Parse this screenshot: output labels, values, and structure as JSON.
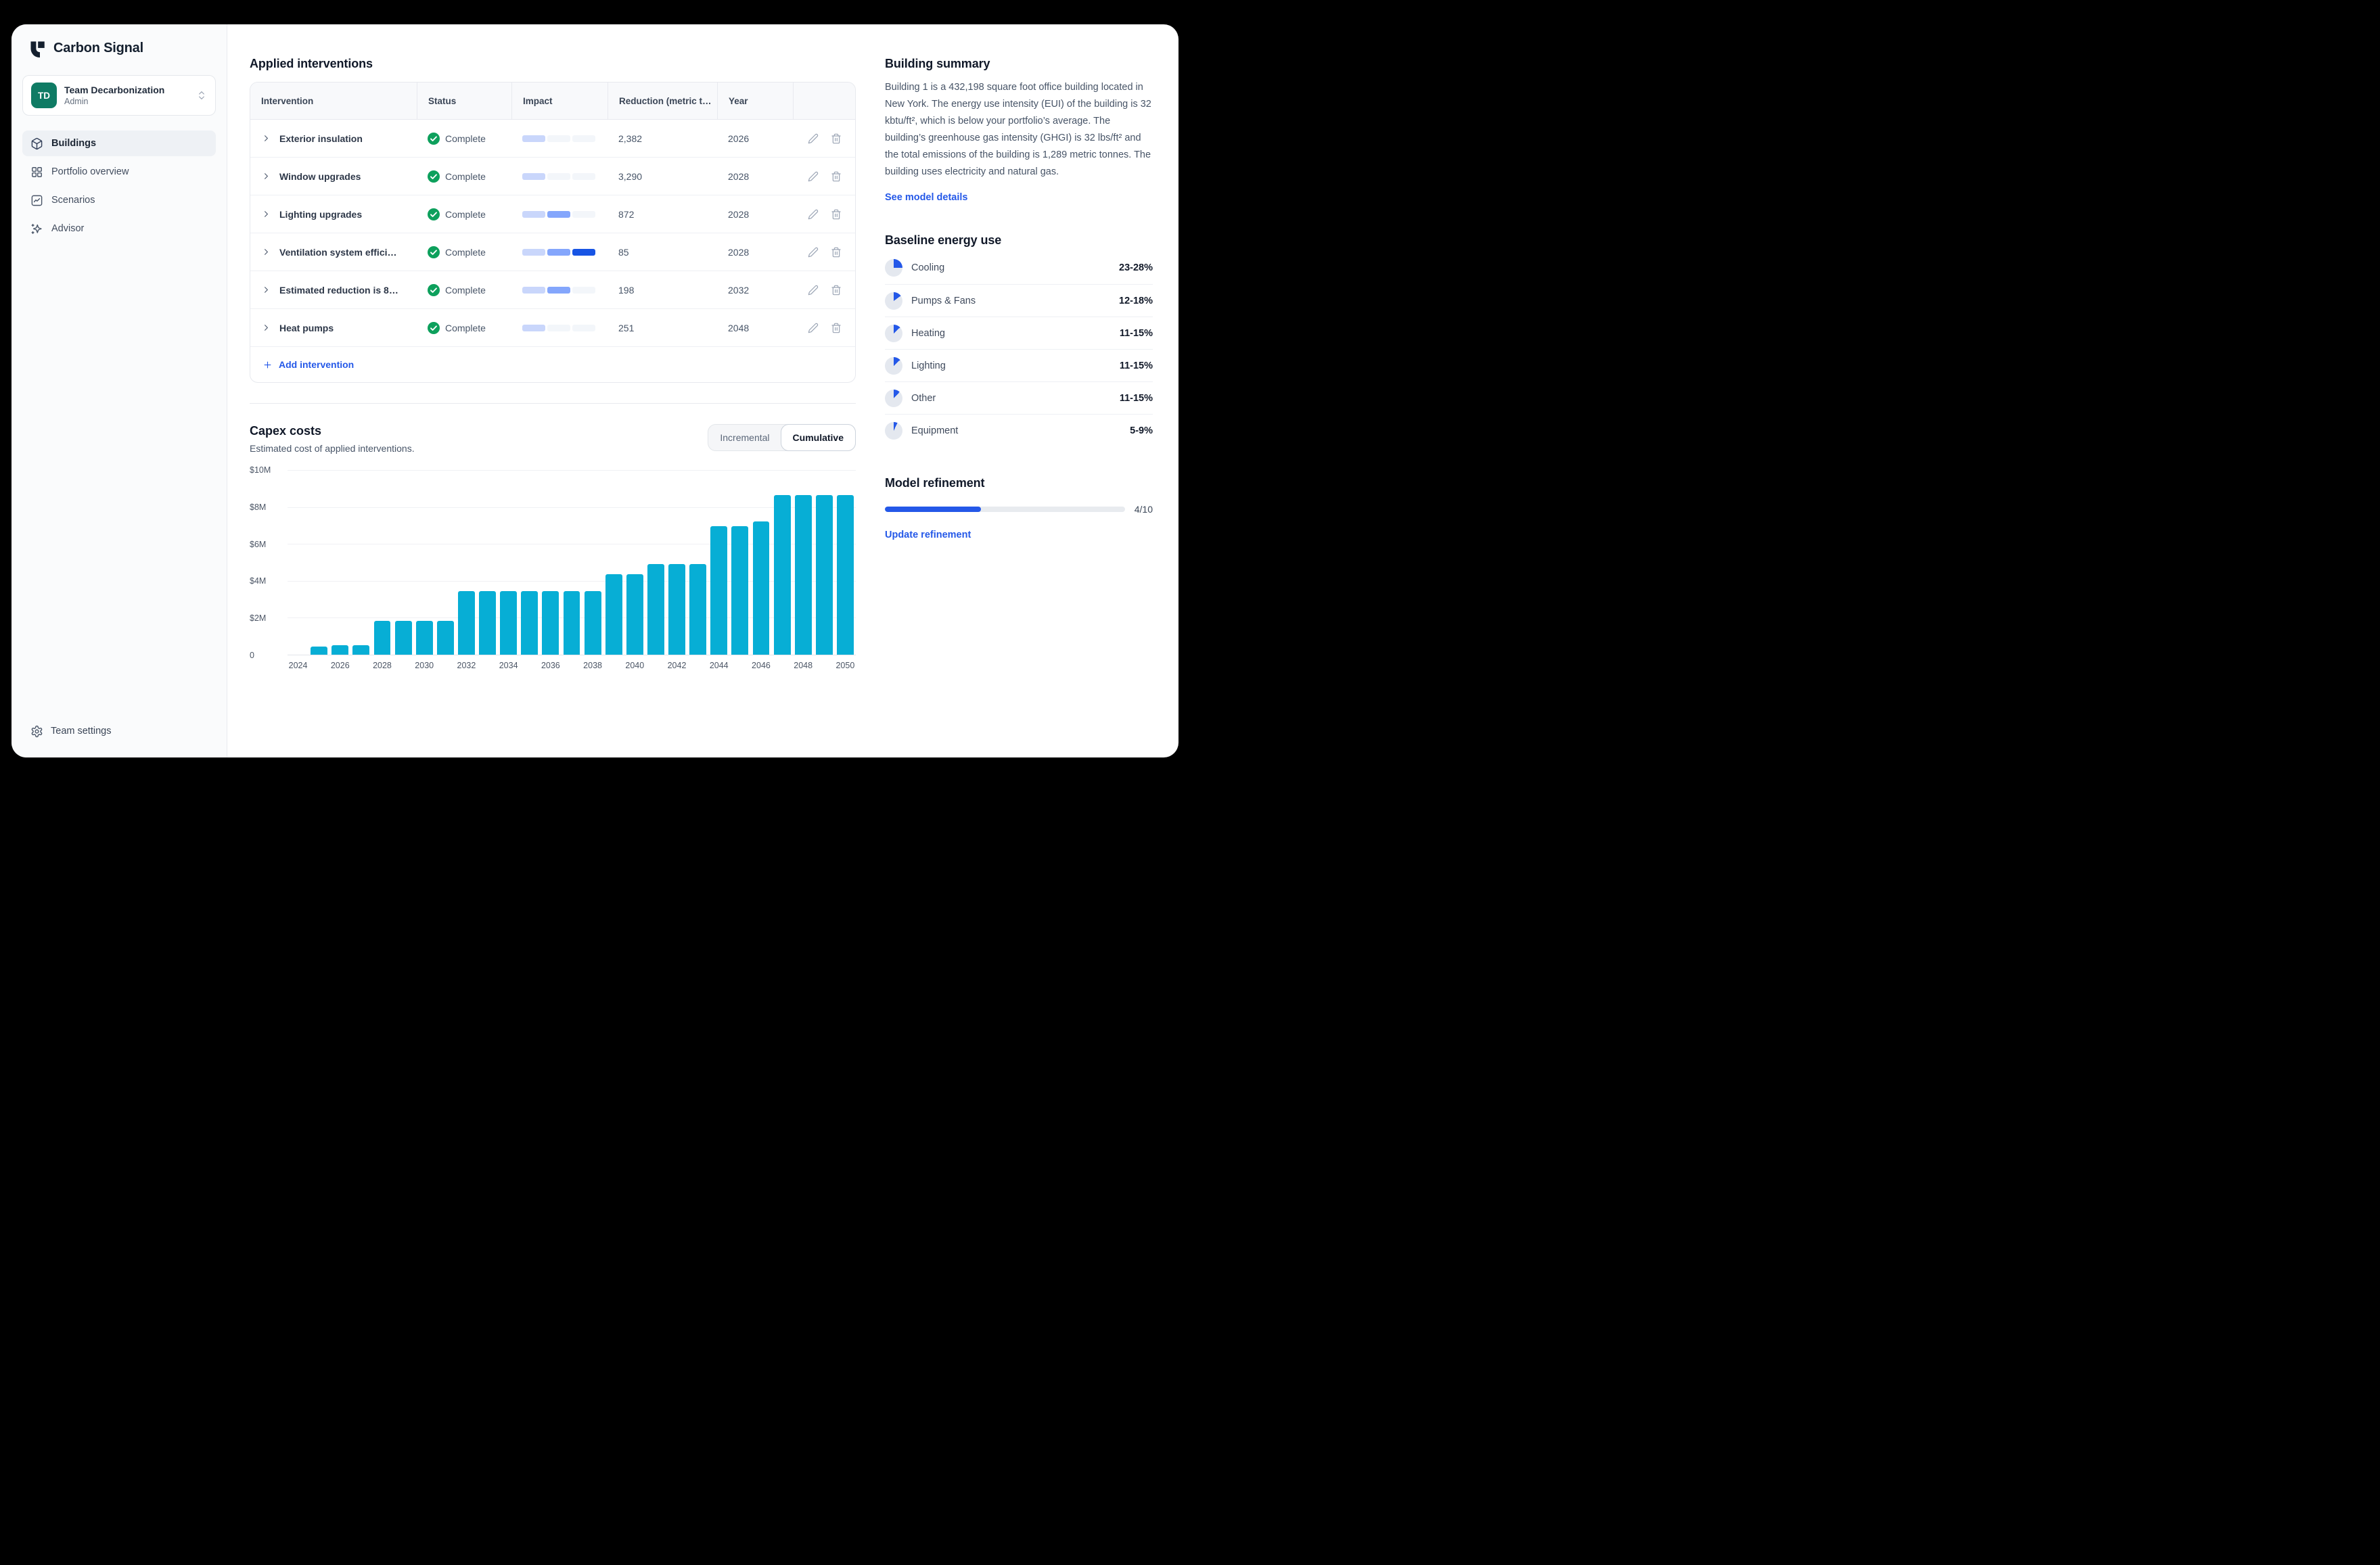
{
  "colors": {
    "accent": "#2458e8",
    "bar": "#07aed5",
    "green": "#0da05c",
    "impact_light": "#c9d6fb",
    "impact_medium": "#84a6fc",
    "impact_dark": "#1754e4",
    "pie_track": "#e4e8ef"
  },
  "app": {
    "name": "Carbon Signal"
  },
  "sidebar": {
    "team": {
      "initials": "TD",
      "name": "Team Decarbonization",
      "role": "Admin"
    },
    "nav": [
      {
        "label": "Buildings",
        "active": true
      },
      {
        "label": "Portfolio overview",
        "active": false
      },
      {
        "label": "Scenarios",
        "active": false
      },
      {
        "label": "Advisor",
        "active": false
      }
    ],
    "footer_label": "Team settings"
  },
  "interventions": {
    "title": "Applied interventions",
    "columns": [
      "Intervention",
      "Status",
      "Impact",
      "Reduction (metric t…",
      "Year"
    ],
    "rows": [
      {
        "name": "Exterior insulation",
        "status": "Complete",
        "impact": 1,
        "reduction": "2,382",
        "year": "2026"
      },
      {
        "name": "Window upgrades",
        "status": "Complete",
        "impact": 1,
        "reduction": "3,290",
        "year": "2028"
      },
      {
        "name": "Lighting upgrades",
        "status": "Complete",
        "impact": 2,
        "reduction": "872",
        "year": "2028"
      },
      {
        "name": "Ventilation system effici…",
        "status": "Complete",
        "impact": 3,
        "reduction": "85",
        "year": "2028"
      },
      {
        "name": "Estimated reduction is 8…",
        "status": "Complete",
        "impact": 2,
        "reduction": "198",
        "year": "2032"
      },
      {
        "name": "Heat pumps",
        "status": "Complete",
        "impact": 1,
        "reduction": "251",
        "year": "2048"
      }
    ],
    "add_label": "Add intervention"
  },
  "capex": {
    "title": "Capex costs",
    "subtitle": "Estimated cost of applied interventions.",
    "toggle": [
      "Incremental",
      "Cumulative"
    ],
    "active_toggle": "Cumulative"
  },
  "chart_data": {
    "type": "bar",
    "title": "Capex costs",
    "xlabel": "",
    "ylabel": "",
    "x": [
      2024,
      2025,
      2026,
      2027,
      2028,
      2029,
      2030,
      2031,
      2032,
      2033,
      2034,
      2035,
      2036,
      2037,
      2038,
      2039,
      2040,
      2041,
      2042,
      2043,
      2044,
      2045,
      2046,
      2047,
      2048,
      2049,
      2050
    ],
    "values": [
      0,
      0.45,
      0.5,
      0.5,
      1.85,
      1.85,
      1.85,
      1.85,
      3.45,
      3.45,
      3.45,
      3.45,
      3.45,
      3.45,
      3.45,
      4.35,
      4.35,
      4.9,
      4.9,
      4.9,
      6.95,
      6.95,
      7.2,
      8.65,
      8.65,
      8.65,
      8.65
    ],
    "unit": "$M",
    "y_ticks": [
      "$10M",
      "$8M",
      "$6M",
      "$4M",
      "$2M",
      "0"
    ],
    "ylim": [
      0,
      10
    ],
    "x_tick_step": 2,
    "grid": true,
    "legend": false
  },
  "building_summary": {
    "title": "Building summary",
    "body": "Building 1 is a 432,198 square foot office building located in New York. The energy use intensity (EUI) of the building is 32 kbtu/ft², which is below your portfolio’s average. The building’s greenhouse gas intensity (GHGI) is 32 lbs/ft² and the total emissions of the building is 1,289 metric tonnes. The building uses electricity and natural gas.",
    "link": "See model details"
  },
  "baseline": {
    "title": "Baseline energy use",
    "items": [
      {
        "label": "Cooling",
        "range": "23-28%",
        "pct": 25
      },
      {
        "label": "Pumps & Fans",
        "range": "12-18%",
        "pct": 15
      },
      {
        "label": "Heating",
        "range": "11-15%",
        "pct": 13
      },
      {
        "label": "Lighting",
        "range": "11-15%",
        "pct": 13
      },
      {
        "label": "Other",
        "range": "11-15%",
        "pct": 12
      },
      {
        "label": "Equipment",
        "range": "5-9%",
        "pct": 7
      }
    ]
  },
  "refinement": {
    "title": "Model refinement",
    "value": 4,
    "max": 10,
    "label": "4/10",
    "link": "Update refinement"
  }
}
